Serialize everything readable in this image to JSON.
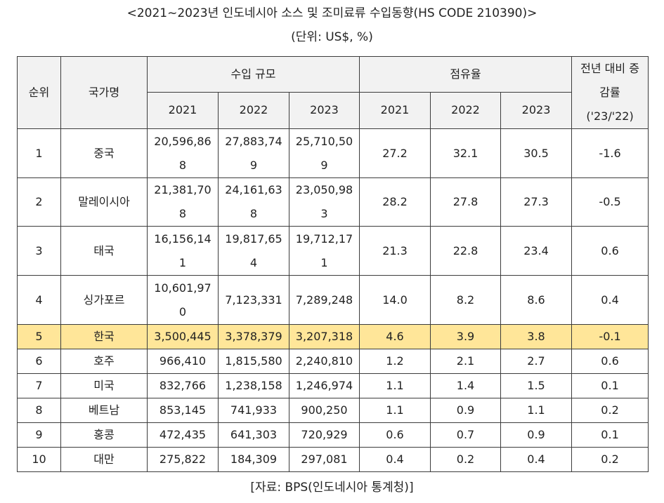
{
  "title": "<2021~2023년 인도네시아 소스 및 조미료류 수입동향(HS CODE 210390)>",
  "unit": "(단위: US$, %)",
  "headers": {
    "rank": "순위",
    "country": "국가명",
    "import_size": "수입 규모",
    "share": "점유율",
    "growth_line1": "전년 대비 증",
    "growth_line2": "감률",
    "growth_line3": "('23/'22)",
    "y2021": "2021",
    "y2022": "2022",
    "y2023": "2023"
  },
  "rows": [
    {
      "rank": "1",
      "country": "중국",
      "v2021": "20,596,868",
      "v2022": "27,883,749",
      "v2023": "25,710,509",
      "s2021": "27.2",
      "s2022": "32.1",
      "s2023": "30.5",
      "growth": "-1.6"
    },
    {
      "rank": "2",
      "country": "말레이시아",
      "v2021": "21,381,708",
      "v2022": "24,161,638",
      "v2023": "23,050,983",
      "s2021": "28.2",
      "s2022": "27.8",
      "s2023": "27.3",
      "growth": "-0.5"
    },
    {
      "rank": "3",
      "country": "태국",
      "v2021": "16,156,141",
      "v2022": "19,817,654",
      "v2023": "19,712,171",
      "s2021": "21.3",
      "s2022": "22.8",
      "s2023": "23.4",
      "growth": "0.6"
    },
    {
      "rank": "4",
      "country": "싱가포르",
      "v2021": "10,601,970",
      "v2022": "7,123,331",
      "v2023": "7,289,248",
      "s2021": "14.0",
      "s2022": "8.2",
      "s2023": "8.6",
      "growth": "0.4"
    },
    {
      "rank": "5",
      "country": "한국",
      "v2021": "3,500,445",
      "v2022": "3,378,379",
      "v2023": "3,207,318",
      "s2021": "4.6",
      "s2022": "3.9",
      "s2023": "3.8",
      "growth": "-0.1"
    },
    {
      "rank": "6",
      "country": "호주",
      "v2021": "966,410",
      "v2022": "1,815,580",
      "v2023": "2,240,810",
      "s2021": "1.2",
      "s2022": "2.1",
      "s2023": "2.7",
      "growth": "0.6"
    },
    {
      "rank": "7",
      "country": "미국",
      "v2021": "832,766",
      "v2022": "1,238,158",
      "v2023": "1,246,974",
      "s2021": "1.1",
      "s2022": "1.4",
      "s2023": "1.5",
      "growth": "0.1"
    },
    {
      "rank": "8",
      "country": "베트남",
      "v2021": "853,145",
      "v2022": "741,933",
      "v2023": "900,250",
      "s2021": "1.1",
      "s2022": "0.9",
      "s2023": "1.1",
      "growth": "0.2"
    },
    {
      "rank": "9",
      "country": "홍콩",
      "v2021": "472,435",
      "v2022": "641,303",
      "v2023": "720,929",
      "s2021": "0.6",
      "s2022": "0.7",
      "s2023": "0.9",
      "growth": "0.1"
    },
    {
      "rank": "10",
      "country": "대만",
      "v2021": "275,822",
      "v2022": "184,309",
      "v2023": "297,081",
      "s2021": "0.4",
      "s2022": "0.2",
      "s2023": "0.4",
      "growth": "0.2"
    }
  ],
  "highlight_color": "#ffe699",
  "header_bg": "#f2f2f2",
  "source": "[자료: BPS(인도네시아 통계청)]"
}
